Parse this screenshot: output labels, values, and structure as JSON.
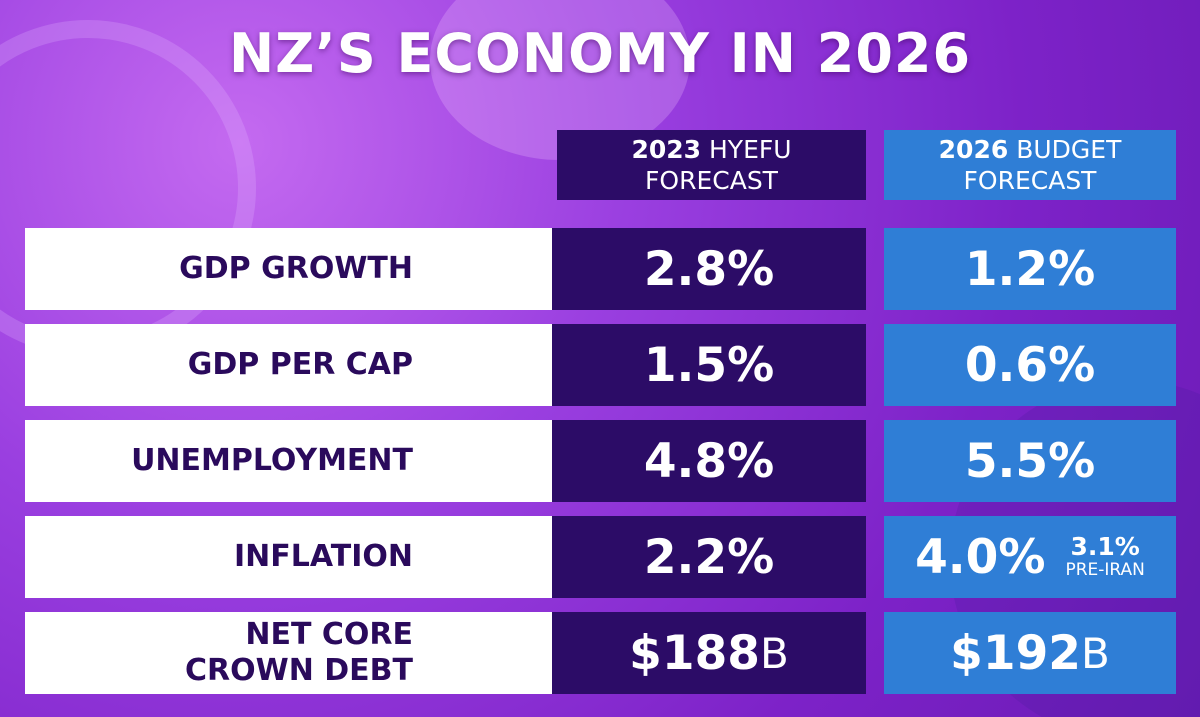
{
  "title": "NZ’S ECONOMY IN 2026",
  "table": {
    "columns": [
      {
        "year": "2023",
        "name": "HYEFU",
        "line2": "FORECAST"
      },
      {
        "year": "2026",
        "name": "BUDGET",
        "line2": "FORECAST"
      }
    ],
    "rows": [
      {
        "label": [
          "GDP GROWTH"
        ],
        "cells": [
          {
            "value": "2.8%"
          },
          {
            "value": "1.2%"
          }
        ]
      },
      {
        "label": [
          "GDP PER CAP"
        ],
        "cells": [
          {
            "value": "1.5%"
          },
          {
            "value": "0.6%"
          }
        ]
      },
      {
        "label": [
          "UNEMPLOYMENT"
        ],
        "cells": [
          {
            "value": "4.8%"
          },
          {
            "value": "5.5%"
          }
        ]
      },
      {
        "label": [
          "INFLATION"
        ],
        "cells": [
          {
            "value": "2.2%"
          },
          {
            "value": "4.0%",
            "note": "3.1%",
            "note_label": "PRE-IRAN"
          }
        ]
      },
      {
        "label": [
          "NET CORE",
          "CROWN DEBT"
        ],
        "cells": [
          {
            "value": "$188",
            "unit": "B"
          },
          {
            "value": "$192",
            "unit": "B"
          }
        ]
      }
    ]
  }
}
